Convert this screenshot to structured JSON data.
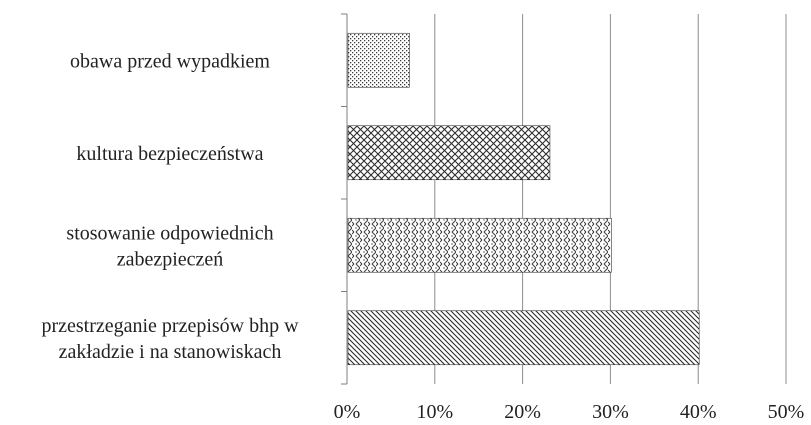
{
  "chart_data": {
    "type": "bar",
    "orientation": "horizontal",
    "categories": [
      [
        "obawa przed wypadkiem"
      ],
      [
        "kultura bezpieczeństwa"
      ],
      [
        "stosowanie odpowiednich",
        "zabezpieczeń"
      ],
      [
        "przestrzeganie przepisów bhp w",
        "zakładzie i na stanowiskach"
      ]
    ],
    "values": [
      7,
      23,
      30,
      40
    ],
    "patterns": [
      "fine-dots",
      "crosshatch",
      "diamond-dots",
      "diagonal-lines"
    ],
    "x_ticks": [
      "0%",
      "10%",
      "20%",
      "30%",
      "40%",
      "50%"
    ],
    "xlim": [
      0,
      50
    ],
    "title": "",
    "xlabel": "",
    "ylabel": "",
    "grid": "vertical",
    "legend": "none",
    "colors": {
      "bar_stroke": "#333333",
      "pattern": "#3a3a3a",
      "grid": "#8c8c8c",
      "axis": "#7f7f7f"
    }
  }
}
